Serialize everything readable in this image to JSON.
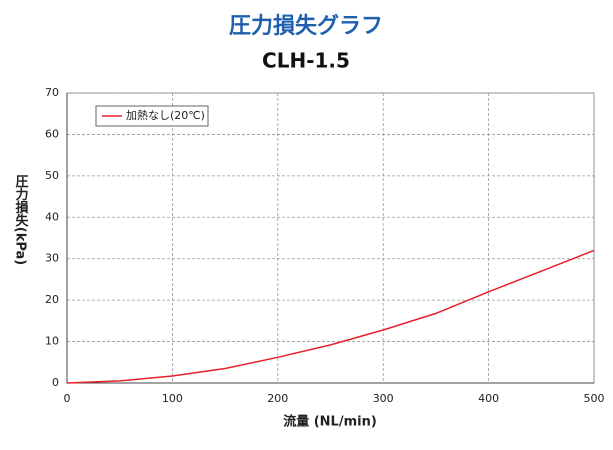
{
  "chart_data": {
    "type": "line",
    "title": "圧力損失グラフ",
    "subtitle": "CLH-1.5",
    "x_label": "流量 (NL/min)",
    "y_label": "圧力損失(kPa)",
    "x": [
      0,
      50,
      100,
      150,
      200,
      250,
      300,
      350,
      400,
      450,
      500
    ],
    "series": [
      {
        "name": "加熱なし(20℃)",
        "color": "#e8202a",
        "values": [
          0,
          0.5,
          1.7,
          3.5,
          6.2,
          9.2,
          12.8,
          16.8,
          22,
          27,
          32
        ]
      }
    ],
    "xlim": [
      0,
      500
    ],
    "xticks": [
      0,
      100,
      200,
      300,
      400,
      500
    ],
    "ylim": [
      0,
      70
    ],
    "yticks": [
      0,
      10,
      20,
      30,
      40,
      50,
      60,
      70
    ],
    "grid": true,
    "legend": "top-left"
  }
}
